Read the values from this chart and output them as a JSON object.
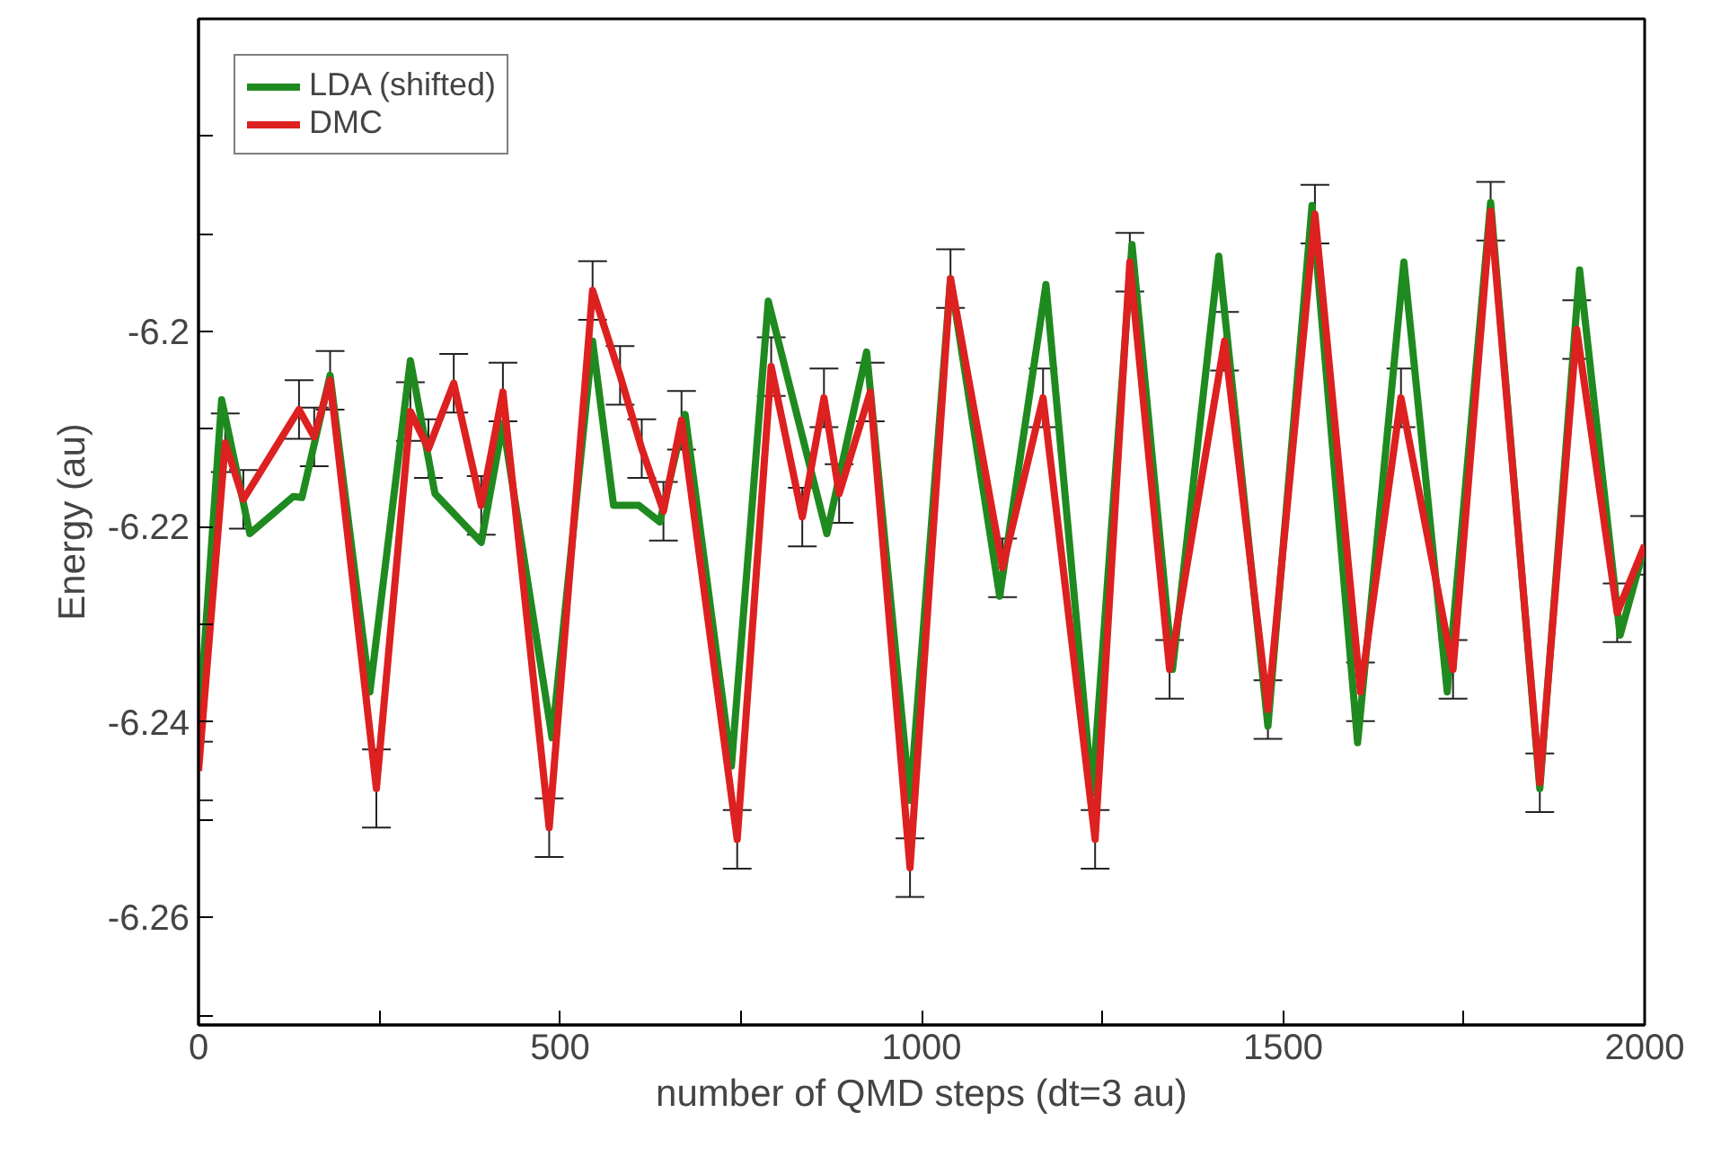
{
  "chart_data": {
    "type": "line",
    "xlabel": "number of QMD steps (dt=3 au)",
    "ylabel": "Energy (au)",
    "xlim": [
      0,
      2000
    ],
    "ylim": [
      -6.271,
      -6.168
    ],
    "xticks": [
      0,
      {
        "value": 250,
        "label": null
      },
      500,
      {
        "value": 750,
        "label": null
      },
      1000,
      {
        "value": 1250,
        "label": null
      },
      1500,
      {
        "value": 1750,
        "label": null
      },
      2000
    ],
    "yticks": [
      {
        "value": -6.27,
        "label": null
      },
      -6.26,
      {
        "value": -6.25,
        "label": null
      },
      -6.24,
      {
        "value": -6.23,
        "label": null
      },
      -6.22,
      {
        "value": -6.21,
        "label": null
      },
      -6.2,
      {
        "value": -6.19,
        "label": null
      },
      {
        "value": -6.18,
        "label": null
      }
    ],
    "grid": false,
    "legend": "top left",
    "line_style": "solid",
    "marker": "none",
    "series": [
      {
        "name": "LDA (shifted)",
        "color": "#1f8a1f",
        "x": [
          0,
          32,
          71,
          131,
          143,
          182,
          237,
          293,
          327,
          391,
          421,
          489,
          545,
          574,
          609,
          638,
          673,
          737,
          788,
          869,
          924,
          984,
          1040,
          1108,
          1172,
          1236,
          1291,
          1347,
          1411,
          1479,
          1540,
          1603,
          1667,
          1727,
          1787,
          1855,
          1910,
          1966,
          2000
        ],
        "values": [
          -6.241,
          -6.207,
          -6.2207,
          -6.2169,
          -6.217,
          -6.2045,
          -6.2369,
          -6.203,
          -6.2166,
          -6.2216,
          -6.2094,
          -6.2416,
          -6.201,
          -6.2178,
          -6.2178,
          -6.2195,
          -6.2085,
          -6.2445,
          -6.1969,
          -6.2207,
          -6.2021,
          -6.248,
          -6.1946,
          -6.2271,
          -6.1952,
          -6.2473,
          -6.1911,
          -6.2346,
          -6.1923,
          -6.2404,
          -6.1871,
          -6.2421,
          -6.1929,
          -6.2369,
          -6.1868,
          -6.2468,
          -6.1937,
          -6.2311,
          -6.222
        ]
      },
      {
        "name": "DMC",
        "color": "#dd2020",
        "x": [
          0,
          37,
          62,
          139,
          160,
          182,
          246,
          293,
          318,
          353,
          391,
          421,
          485,
          545,
          583,
          613,
          643,
          668,
          745,
          792,
          835,
          865,
          886,
          929,
          984,
          1040,
          1112,
          1168,
          1240,
          1288,
          1343,
          1419,
          1479,
          1544,
          1607,
          1663,
          1735,
          1787,
          1855,
          1906,
          1962,
          2000
        ],
        "values": [
          -6.245,
          -6.2114,
          -6.2172,
          -6.208,
          -6.2108,
          -6.205,
          -6.2468,
          -6.2082,
          -6.212,
          -6.2053,
          -6.2178,
          -6.2062,
          -6.2508,
          -6.1958,
          -6.2045,
          -6.212,
          -6.2184,
          -6.2091,
          -6.252,
          -6.2036,
          -6.219,
          -6.2068,
          -6.2166,
          -6.2062,
          -6.2549,
          -6.1946,
          -6.2242,
          -6.2068,
          -6.252,
          -6.1929,
          -6.2346,
          -6.201,
          -6.2387,
          -6.188,
          -6.2369,
          -6.2068,
          -6.2346,
          -6.1877,
          -6.2462,
          -6.1998,
          -6.2288,
          -6.2219
        ],
        "errors": [
          0.003,
          0.003,
          0.003,
          0.003,
          0.003,
          0.003,
          0.004,
          0.003,
          0.003,
          0.003,
          0.003,
          0.003,
          0.003,
          0.003,
          0.003,
          0.003,
          0.003,
          0.003,
          0.003,
          0.003,
          0.003,
          0.003,
          0.003,
          0.003,
          0.003,
          0.003,
          0.003,
          0.003,
          0.003,
          0.003,
          0.003,
          0.003,
          0.003,
          0.003,
          0.003,
          0.003,
          0.003,
          0.003,
          0.003,
          0.003,
          0.003,
          0.003
        ]
      }
    ]
  }
}
